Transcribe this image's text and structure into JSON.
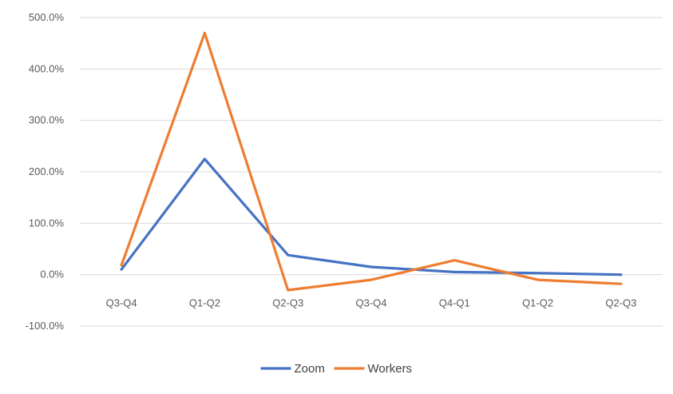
{
  "chart_data": {
    "type": "line",
    "categories": [
      "Q3-Q4",
      "Q1-Q2",
      "Q2-Q3",
      "Q3-Q4",
      "Q4-Q1",
      "Q1-Q2",
      "Q2-Q3"
    ],
    "series": [
      {
        "name": "Zoom",
        "color": "#4472c4",
        "values": [
          10,
          225,
          38,
          15,
          5,
          3,
          0
        ]
      },
      {
        "name": "Workers",
        "color": "#ed7d31",
        "values": [
          18,
          470,
          -30,
          -10,
          28,
          -10,
          -18
        ]
      }
    ],
    "ylim": [
      -100,
      500
    ],
    "yticks": [
      -100,
      0,
      100,
      200,
      300,
      400,
      500
    ],
    "ytick_labels": [
      "-100.0%",
      "0.0%",
      "100.0%",
      "200.0%",
      "300.0%",
      "400.0%",
      "500.0%"
    ],
    "grid": true,
    "legend_position": "bottom"
  }
}
